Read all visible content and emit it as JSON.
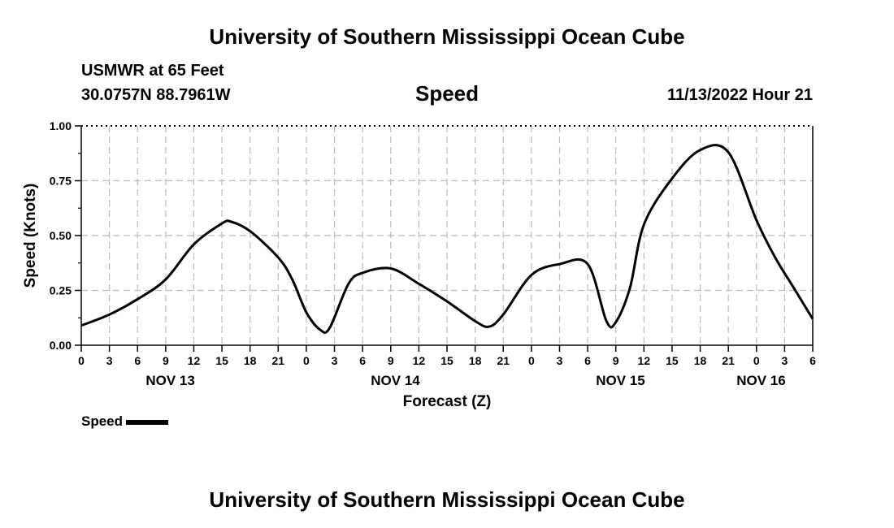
{
  "header": {
    "title": "University of Southern Mississippi Ocean Cube",
    "station": "USMWR at 65 Feet",
    "coords": "30.0757N  88.7961W",
    "chart_title": "Speed",
    "datetime": "11/13/2022 Hour 21"
  },
  "legend": {
    "label": "Speed",
    "color": "#000000"
  },
  "footer": {
    "title": "University of Southern Mississippi Ocean Cube"
  },
  "chart_data": {
    "type": "line",
    "title": "Speed",
    "xlabel": "Forecast (Z)",
    "ylabel": "Speed (Knots)",
    "xlim": [
      0,
      78
    ],
    "ylim": [
      0,
      1
    ],
    "grid": true,
    "y_ticks": [
      0,
      0.25,
      0.5,
      0.75,
      1.0
    ],
    "y_tick_labels": [
      "0.00",
      "0.25",
      "0.50",
      "0.75",
      "1.00"
    ],
    "x_ticks": [
      0,
      3,
      6,
      9,
      12,
      15,
      18,
      21,
      24,
      27,
      30,
      33,
      36,
      39,
      42,
      45,
      48,
      51,
      54,
      57,
      60,
      63,
      66,
      69,
      72,
      75,
      78
    ],
    "x_tick_labels": [
      "0",
      "3",
      "6",
      "9",
      "12",
      "15",
      "18",
      "21",
      "0",
      "3",
      "6",
      "9",
      "12",
      "15",
      "18",
      "21",
      "0",
      "3",
      "6",
      "9",
      "12",
      "15",
      "18",
      "21",
      "0",
      "3",
      "6"
    ],
    "date_labels": [
      {
        "label": "NOV 13",
        "x": 9.5
      },
      {
        "label": "NOV 14",
        "x": 33.5
      },
      {
        "label": "NOV 15",
        "x": 57.5
      },
      {
        "label": "NOV 16",
        "x": 72.5
      }
    ],
    "series": [
      {
        "name": "Speed",
        "color": "#000000",
        "x": [
          0,
          3,
          6,
          9,
          12,
          15,
          16,
          18,
          21,
          22.5,
          24,
          25.5,
          26.5,
          28.5,
          30,
          33,
          36,
          39,
          42,
          43.5,
          45,
          48,
          51,
          54,
          56,
          57,
          58.5,
          60,
          63,
          66,
          69,
          72,
          74,
          76,
          78
        ],
        "y": [
          0.09,
          0.14,
          0.21,
          0.3,
          0.46,
          0.555,
          0.563,
          0.52,
          0.4,
          0.3,
          0.15,
          0.07,
          0.08,
          0.28,
          0.33,
          0.35,
          0.28,
          0.2,
          0.11,
          0.085,
          0.14,
          0.32,
          0.37,
          0.37,
          0.11,
          0.105,
          0.26,
          0.55,
          0.76,
          0.89,
          0.88,
          0.57,
          0.4,
          0.26,
          0.12
        ]
      }
    ]
  }
}
